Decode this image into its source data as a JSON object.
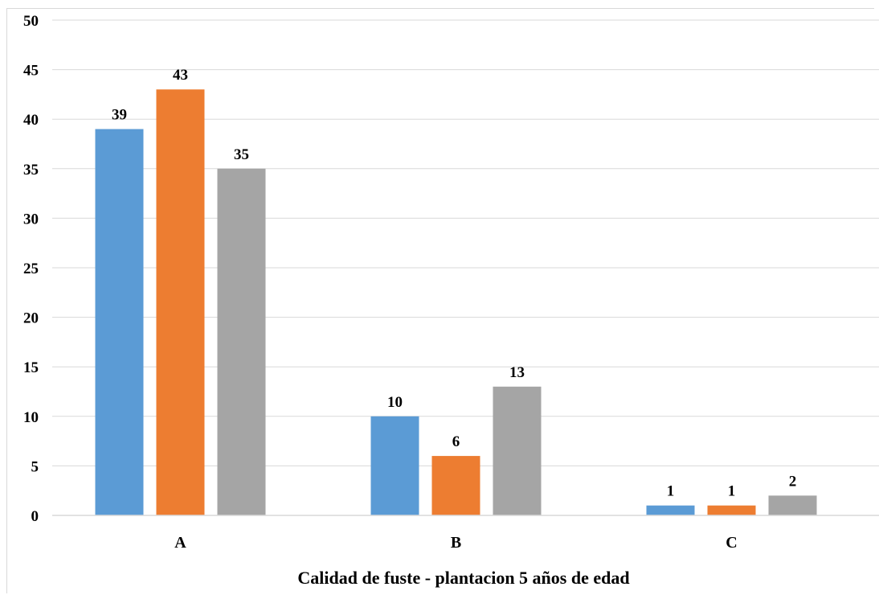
{
  "chart_data": {
    "type": "bar",
    "title": "",
    "xlabel": "Calidad de fuste - plantacion 5 años de edad",
    "ylabel": "",
    "categories": [
      "A",
      "B",
      "C"
    ],
    "series": [
      {
        "values": [
          39,
          10,
          1
        ],
        "color": "#5b9bd5"
      },
      {
        "values": [
          43,
          6,
          1
        ],
        "color": "#ed7d31"
      },
      {
        "values": [
          35,
          13,
          2
        ],
        "color": "#a5a5a5"
      }
    ],
    "ylim": [
      0,
      50
    ],
    "yticks": [
      0,
      5,
      10,
      15,
      20,
      25,
      30,
      35,
      40,
      45,
      50
    ],
    "grid": true,
    "legend": "none",
    "data_labels": true
  }
}
